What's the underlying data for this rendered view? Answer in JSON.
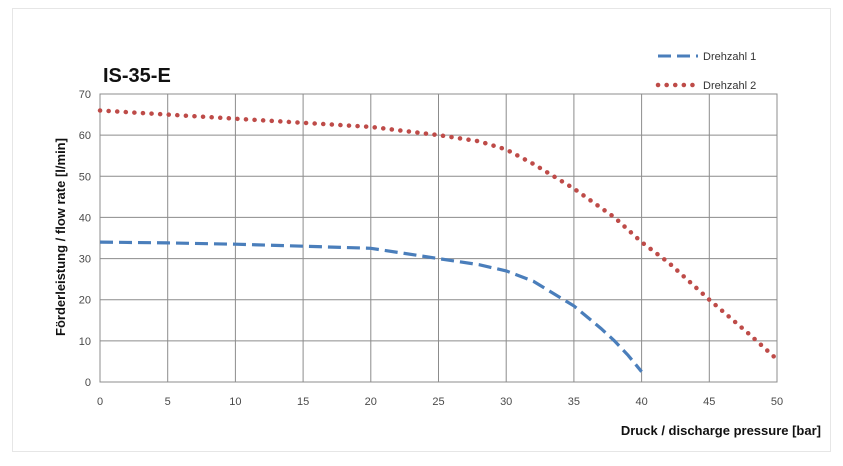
{
  "chart_data": {
    "type": "line",
    "title": "IS-35-E",
    "xlabel": "Druck / discharge pressure [bar]",
    "ylabel": "Förderleistung / flow rate [l/min]",
    "xlim": [
      0,
      50
    ],
    "ylim": [
      0,
      70
    ],
    "x_ticks": [
      0,
      5,
      10,
      15,
      20,
      25,
      30,
      35,
      40,
      45,
      50
    ],
    "y_ticks": [
      0,
      10,
      20,
      30,
      40,
      50,
      60,
      70
    ],
    "grid": true,
    "legend_position": "top-right",
    "series": [
      {
        "name": "Drehzahl 1",
        "style": "dashed",
        "color": "#4a7ebb",
        "x": [
          0,
          5,
          10,
          15,
          20,
          22,
          25,
          28,
          30,
          32,
          35,
          37,
          38,
          39,
          40
        ],
        "y": [
          34,
          33.8,
          33.5,
          33,
          32.5,
          31.5,
          30,
          28.5,
          27,
          24.5,
          18.5,
          13,
          10,
          6.5,
          2.5
        ]
      },
      {
        "name": "Drehzahl 2",
        "style": "dotted",
        "color": "#be4b48",
        "x": [
          0,
          5,
          10,
          15,
          20,
          25,
          28,
          30,
          32,
          35,
          38,
          40,
          42,
          45,
          48,
          50
        ],
        "y": [
          66,
          65,
          64,
          63,
          62,
          60,
          58.5,
          56.5,
          53,
          47,
          40,
          34,
          29,
          20,
          11.5,
          5.5
        ]
      }
    ]
  }
}
